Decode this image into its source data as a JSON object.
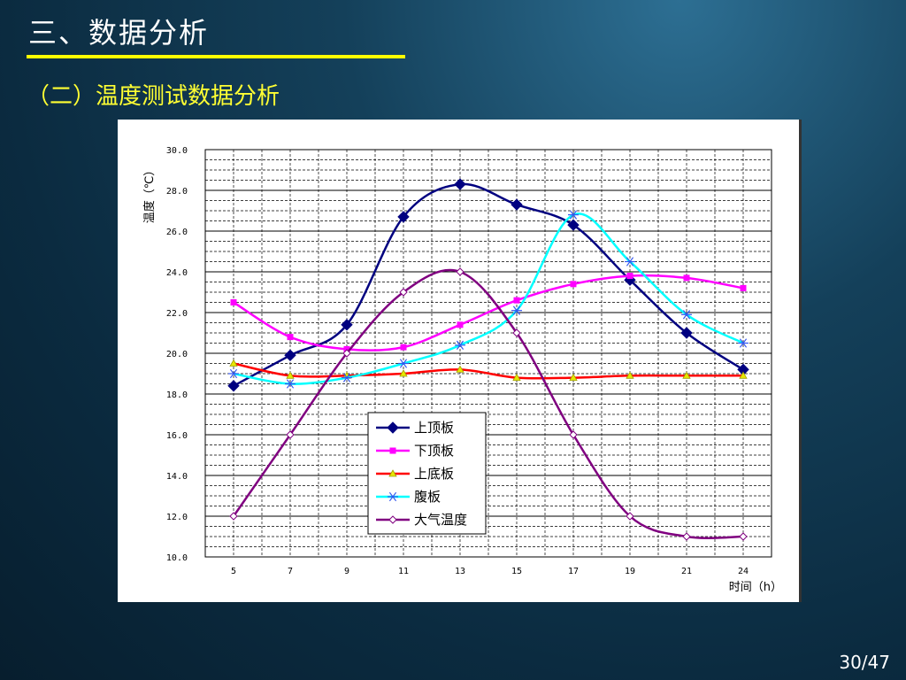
{
  "slide": {
    "title": "三、数据分析",
    "subtitle": "（二）温度测试数据分析",
    "page_number": "30/47"
  },
  "colors": {
    "title": "#ffffff",
    "underline": "#ffff00",
    "subtitle": "#ffff33"
  },
  "chart_data": {
    "type": "line",
    "xlabel": "时间（h）",
    "ylabel": "温度（℃）",
    "x": [
      5,
      7,
      9,
      11,
      13,
      15,
      17,
      19,
      21,
      24
    ],
    "x_tick_labels": [
      "5",
      "7",
      "9",
      "11",
      "13",
      "15",
      "17",
      "19",
      "21",
      "24"
    ],
    "ylim": [
      10,
      30
    ],
    "y_tick_labels": [
      "10.0",
      "12.0",
      "14.0",
      "16.0",
      "18.0",
      "20.0",
      "22.0",
      "24.0",
      "26.0",
      "28.0",
      "30.0"
    ],
    "grid": true,
    "legend_position": "center-bottom",
    "series": [
      {
        "name": "上顶板",
        "color": "#000080",
        "marker": "diamond",
        "values": [
          18.4,
          19.9,
          21.4,
          26.7,
          28.3,
          27.3,
          26.3,
          23.6,
          21.0,
          19.2
        ]
      },
      {
        "name": "下顶板",
        "color": "#ff00ff",
        "marker": "square",
        "values": [
          22.5,
          20.8,
          20.2,
          20.3,
          21.4,
          22.6,
          23.4,
          23.8,
          23.7,
          23.2
        ]
      },
      {
        "name": "上底板",
        "color": "#ff0000",
        "marker": "triangle",
        "values": [
          19.5,
          18.9,
          18.9,
          19.0,
          19.2,
          18.8,
          18.8,
          18.9,
          18.9,
          18.9
        ]
      },
      {
        "name": "腹板",
        "color": "#00ffff",
        "marker": "asterisk",
        "values": [
          19.0,
          18.5,
          18.8,
          19.5,
          20.4,
          22.1,
          26.8,
          24.5,
          21.9,
          20.5
        ]
      },
      {
        "name": "大气温度",
        "color": "#800080",
        "marker": "open-diamond",
        "values": [
          12.0,
          16.0,
          20.0,
          23.0,
          24.0,
          21.0,
          16.0,
          12.0,
          11.0,
          11.0
        ]
      }
    ]
  }
}
